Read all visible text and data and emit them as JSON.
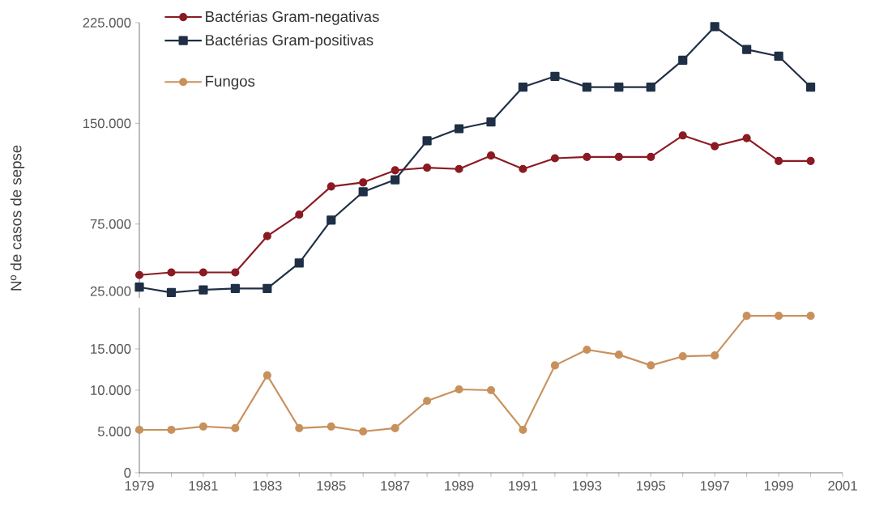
{
  "chart_data": [
    {
      "type": "line",
      "ylabel": "Nº de casos de sepse",
      "legend": "top left",
      "tick_labels": "y",
      "line_style": "solid",
      "x": [
        1979,
        1980,
        1981,
        1982,
        1983,
        1984,
        1985,
        1986,
        1987,
        1988,
        1989,
        1990,
        1991,
        1992,
        1993,
        1994,
        1995,
        1996,
        1997,
        1998,
        1999,
        2000
      ],
      "xlim": [
        1979,
        2001
      ],
      "xticks": [
        1979,
        1981,
        1983,
        1985,
        1987,
        1989,
        1991,
        1993,
        1995,
        1997,
        1999,
        2001
      ],
      "ylim": [
        20000,
        225000
      ],
      "yticks": [
        {
          "value": 25000,
          "label": "25.000"
        },
        {
          "value": 75000,
          "label": "75.000"
        },
        {
          "value": 150000,
          "label": "150.000"
        },
        {
          "value": 225000,
          "label": "225.000"
        }
      ],
      "series": [
        {
          "name": "Bactérias Gram-negativas",
          "color": "#8b1a22",
          "marker": "circle",
          "values": [
            37000,
            39000,
            39000,
            39000,
            66000,
            82000,
            103000,
            106000,
            115000,
            117000,
            116000,
            126000,
            116000,
            124000,
            125000,
            125000,
            125000,
            141000,
            133000,
            139000,
            122000,
            122000
          ]
        },
        {
          "name": "Bactérias Gram-positivas",
          "color": "#1f2f45",
          "marker": "square",
          "values": [
            28000,
            24000,
            26000,
            27000,
            27000,
            46000,
            78000,
            99000,
            108000,
            137000,
            146000,
            151000,
            177000,
            185000,
            177000,
            177000,
            177000,
            197000,
            222000,
            205000,
            200000,
            177000
          ]
        }
      ]
    },
    {
      "type": "line",
      "legend": "top left",
      "line_style": "solid",
      "x": [
        1979,
        1980,
        1981,
        1982,
        1983,
        1984,
        1985,
        1986,
        1987,
        1988,
        1989,
        1990,
        1991,
        1992,
        1993,
        1994,
        1995,
        1996,
        1997,
        1998,
        1999,
        2000
      ],
      "xlim": [
        1979,
        2001
      ],
      "xticks": [
        1979,
        1981,
        1983,
        1985,
        1987,
        1989,
        1991,
        1993,
        1995,
        1997,
        1999,
        2001
      ],
      "ylim": [
        0,
        20000
      ],
      "yticks": [
        0,
        {
          "value": 5000,
          "label": "5.000"
        },
        {
          "value": 10000,
          "label": "10.000"
        },
        {
          "value": 15000,
          "label": "15.000"
        }
      ],
      "series": [
        {
          "name": "Fungos",
          "color": "#c8915c",
          "marker": "circle",
          "values": [
            5200,
            5200,
            5600,
            5400,
            11800,
            5400,
            5600,
            5000,
            5400,
            8700,
            10100,
            10000,
            5200,
            13000,
            14900,
            14300,
            13000,
            14100,
            14200,
            19000,
            19000,
            19000
          ]
        }
      ]
    }
  ]
}
